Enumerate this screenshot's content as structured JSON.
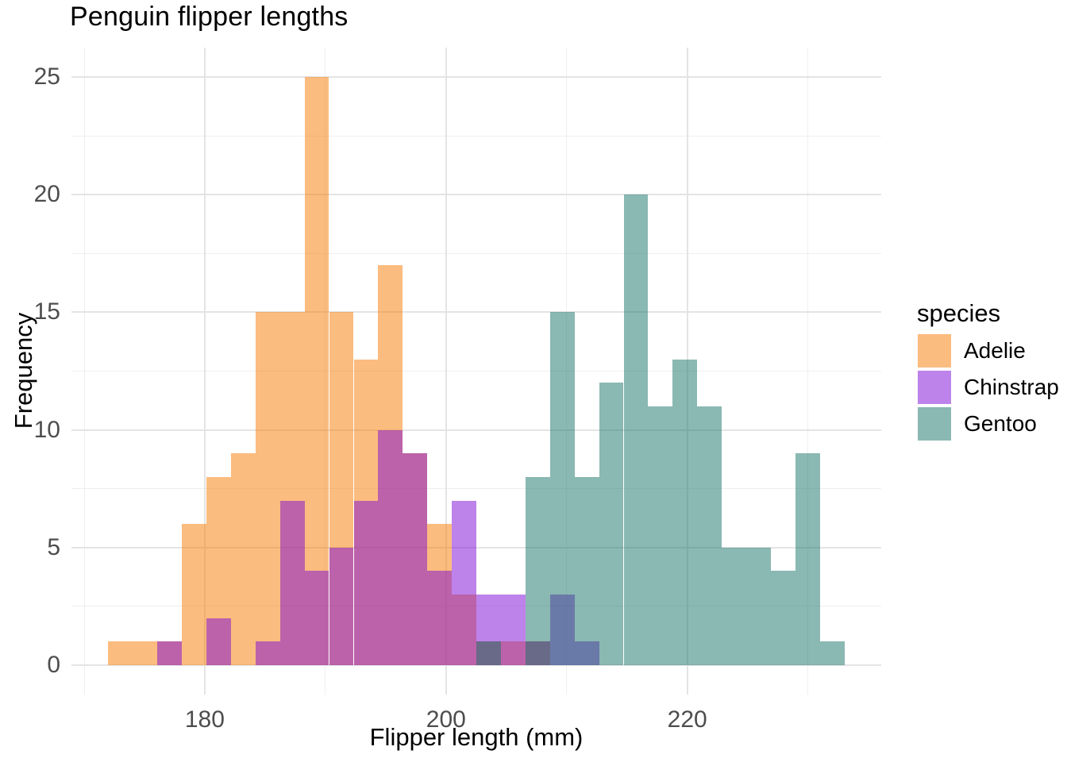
{
  "title": "Penguin flipper lengths",
  "axes": {
    "x": {
      "label": "Flipper length (mm)",
      "major_ticks": [
        180,
        200,
        220
      ],
      "minor_ticks": [
        170,
        190,
        210,
        230
      ],
      "range": [
        168.95,
        236.08
      ]
    },
    "y": {
      "label": "Frequency",
      "major_ticks": [
        0,
        5,
        10,
        15,
        20,
        25
      ],
      "minor_ticks": [
        2.5,
        7.5,
        12.5,
        17.5,
        22.5
      ],
      "range": [
        -1.25,
        26.25
      ]
    }
  },
  "legend": {
    "title": "species",
    "items": [
      {
        "label": "Adelie",
        "color": "rgba(247,121,0,0.5)"
      },
      {
        "label": "Chinstrap",
        "color": "rgba(125,7,213,0.5)"
      },
      {
        "label": "Gentoo",
        "color": "rgba(21,113,101,0.5)"
      }
    ]
  },
  "chart_data": {
    "type": "histogram",
    "title": "Penguin flipper lengths",
    "xlabel": "Flipper length (mm)",
    "ylabel": "Frequency",
    "bin_start": 172,
    "bin_width": 2.0345,
    "n_bins": 30,
    "ylim": [
      0,
      25
    ],
    "grid": true,
    "legend_position": "right",
    "overlap_mode": "identity (semi-transparent overlay)",
    "series": [
      {
        "name": "Adelie",
        "fill": "rgba(247,121,0,0.5)",
        "counts": [
          1,
          1,
          1,
          6,
          8,
          9,
          15,
          15,
          25,
          15,
          13,
          17,
          9,
          6,
          3,
          1,
          1,
          1,
          0,
          0,
          0,
          0,
          0,
          0,
          0,
          0,
          0,
          0,
          0,
          0
        ]
      },
      {
        "name": "Chinstrap",
        "fill": "rgba(125,7,213,0.5)",
        "counts": [
          0,
          0,
          1,
          0,
          2,
          0,
          1,
          7,
          4,
          5,
          7,
          10,
          9,
          4,
          7,
          3,
          3,
          1,
          3,
          1,
          0,
          0,
          0,
          0,
          0,
          0,
          0,
          0,
          0,
          0
        ]
      },
      {
        "name": "Gentoo",
        "fill": "rgba(21,113,101,0.5)",
        "counts": [
          0,
          0,
          0,
          0,
          0,
          0,
          0,
          0,
          0,
          0,
          0,
          0,
          0,
          0,
          0,
          1,
          0,
          8,
          15,
          8,
          12,
          20,
          11,
          13,
          11,
          5,
          5,
          4,
          9,
          1
        ]
      }
    ]
  }
}
